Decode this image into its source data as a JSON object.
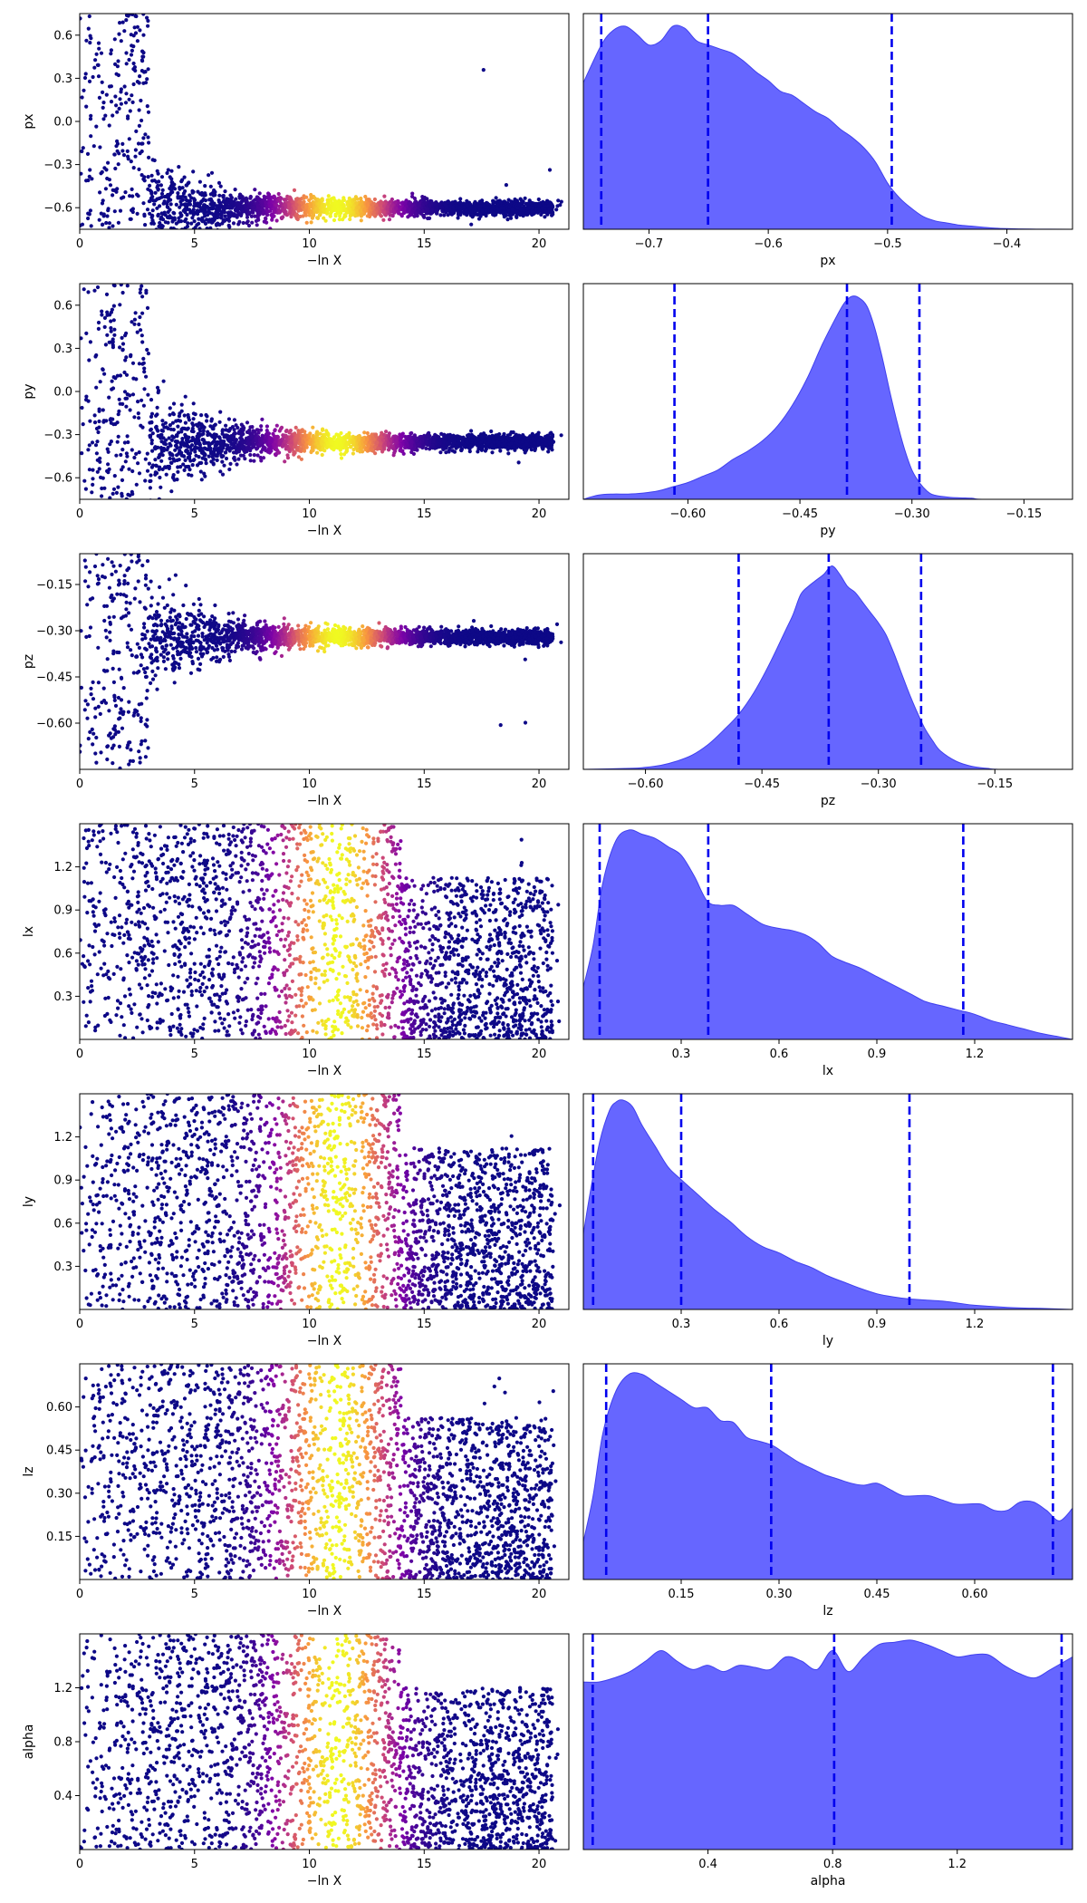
{
  "chart_data": [
    {
      "type": "scatter",
      "panel": "trace",
      "xlabel": "−ln X",
      "ylabel": "px",
      "xlim": [
        0,
        21.3
      ],
      "ylim": [
        -0.75,
        0.75
      ],
      "xticks": [
        0,
        5,
        10,
        15,
        20
      ],
      "yticks": [
        -0.6,
        -0.3,
        0.0,
        0.3,
        0.6
      ],
      "ytick_labels": [
        "−0.6",
        "−0.3",
        "0.0",
        "0.3",
        "0.6"
      ],
      "shape": "funnel",
      "converge_y": -0.6,
      "grid": false
    },
    {
      "type": "area",
      "panel": "posterior",
      "xlabel": "px",
      "xlim": [
        -0.755,
        -0.345
      ],
      "xticks": [
        -0.7,
        -0.6,
        -0.5,
        -0.4
      ],
      "xtick_labels": [
        "−0.7",
        "−0.6",
        "−0.5",
        "−0.4"
      ],
      "x": [
        -0.755,
        -0.74,
        -0.73,
        -0.72,
        -0.71,
        -0.7,
        -0.69,
        -0.68,
        -0.67,
        -0.66,
        -0.65,
        -0.64,
        -0.63,
        -0.62,
        -0.61,
        -0.6,
        -0.59,
        -0.58,
        -0.57,
        -0.56,
        -0.55,
        -0.54,
        -0.53,
        -0.52,
        -0.51,
        -0.5,
        -0.49,
        -0.48,
        -0.47,
        -0.46,
        -0.45,
        -0.44,
        -0.43,
        -0.42,
        -0.41,
        -0.4,
        -0.38,
        -0.345
      ],
      "y": [
        0.7,
        0.88,
        0.95,
        0.97,
        0.93,
        0.88,
        0.9,
        0.97,
        0.96,
        0.9,
        0.88,
        0.86,
        0.84,
        0.8,
        0.75,
        0.71,
        0.66,
        0.64,
        0.6,
        0.56,
        0.53,
        0.48,
        0.44,
        0.39,
        0.32,
        0.22,
        0.15,
        0.1,
        0.06,
        0.04,
        0.03,
        0.02,
        0.015,
        0.01,
        0.005,
        0.003,
        0.001,
        0.0
      ],
      "ylim": [
        0,
        1.03
      ],
      "quantile_lines": [
        -0.74,
        -0.6505,
        -0.4965
      ],
      "color": "#6666ff"
    },
    {
      "type": "scatter",
      "panel": "trace",
      "xlabel": "−ln X",
      "ylabel": "py",
      "xlim": [
        0,
        21.3
      ],
      "ylim": [
        -0.75,
        0.75
      ],
      "xticks": [
        0,
        5,
        10,
        15,
        20
      ],
      "yticks": [
        -0.6,
        -0.3,
        0.0,
        0.3,
        0.6
      ],
      "ytick_labels": [
        "−0.6",
        "−0.3",
        "0.0",
        "0.3",
        "0.6"
      ],
      "shape": "funnel",
      "converge_y": -0.35,
      "grid": false
    },
    {
      "type": "area",
      "panel": "posterior",
      "xlabel": "py",
      "xlim": [
        -0.74,
        -0.085
      ],
      "xticks": [
        -0.6,
        -0.45,
        -0.3,
        -0.15
      ],
      "xtick_labels": [
        "−0.60",
        "−0.45",
        "−0.30",
        "−0.15"
      ],
      "x": [
        -0.74,
        -0.72,
        -0.7,
        -0.68,
        -0.66,
        -0.64,
        -0.62,
        -0.6,
        -0.58,
        -0.56,
        -0.54,
        -0.52,
        -0.5,
        -0.48,
        -0.46,
        -0.44,
        -0.42,
        -0.4,
        -0.39,
        -0.38,
        -0.37,
        -0.36,
        -0.35,
        -0.34,
        -0.33,
        -0.32,
        -0.31,
        -0.3,
        -0.29,
        -0.28,
        -0.27,
        -0.25,
        -0.22,
        -0.2,
        -0.085
      ],
      "y": [
        0.0,
        0.02,
        0.025,
        0.025,
        0.03,
        0.04,
        0.06,
        0.08,
        0.11,
        0.14,
        0.19,
        0.23,
        0.28,
        0.35,
        0.45,
        0.58,
        0.74,
        0.88,
        0.94,
        0.97,
        0.96,
        0.92,
        0.82,
        0.68,
        0.52,
        0.37,
        0.24,
        0.14,
        0.08,
        0.04,
        0.02,
        0.01,
        0.005,
        0.0,
        0.0
      ],
      "ylim": [
        0,
        1.03
      ],
      "quantile_lines": [
        -0.618,
        -0.387,
        -0.29
      ],
      "color": "#6666ff"
    },
    {
      "type": "scatter",
      "panel": "trace",
      "xlabel": "−ln X",
      "ylabel": "pz",
      "xlim": [
        0,
        21.3
      ],
      "ylim": [
        -0.75,
        -0.05
      ],
      "xticks": [
        0,
        5,
        10,
        15,
        20
      ],
      "yticks": [
        -0.6,
        -0.45,
        -0.3,
        -0.15
      ],
      "ytick_labels": [
        "−0.60",
        "−0.45",
        "−0.30",
        "−0.15"
      ],
      "shape": "funnel",
      "converge_y": -0.32,
      "grid": false
    },
    {
      "type": "area",
      "panel": "posterior",
      "xlabel": "pz",
      "xlim": [
        -0.68,
        -0.05
      ],
      "xticks": [
        -0.6,
        -0.45,
        -0.3,
        -0.15
      ],
      "xtick_labels": [
        "−0.60",
        "−0.45",
        "−0.30",
        "−0.15"
      ],
      "x": [
        -0.68,
        -0.62,
        -0.6,
        -0.58,
        -0.56,
        -0.54,
        -0.52,
        -0.5,
        -0.48,
        -0.46,
        -0.44,
        -0.42,
        -0.41,
        -0.4,
        -0.39,
        -0.38,
        -0.37,
        -0.36,
        -0.35,
        -0.34,
        -0.33,
        -0.32,
        -0.31,
        -0.3,
        -0.29,
        -0.28,
        -0.27,
        -0.26,
        -0.25,
        -0.24,
        -0.23,
        -0.22,
        -0.2,
        -0.18,
        -0.16,
        -0.14,
        -0.05
      ],
      "y": [
        0.0,
        0.005,
        0.01,
        0.02,
        0.04,
        0.07,
        0.12,
        0.19,
        0.27,
        0.38,
        0.52,
        0.68,
        0.76,
        0.86,
        0.9,
        0.93,
        0.96,
        1.0,
        0.96,
        0.9,
        0.87,
        0.82,
        0.77,
        0.72,
        0.66,
        0.57,
        0.47,
        0.37,
        0.28,
        0.2,
        0.14,
        0.09,
        0.04,
        0.015,
        0.005,
        0.0,
        0.0
      ],
      "ylim": [
        0,
        1.06
      ],
      "quantile_lines": [
        -0.48,
        -0.364,
        -0.245
      ],
      "color": "#6666ff"
    },
    {
      "type": "scatter",
      "panel": "trace",
      "xlabel": "−ln X",
      "ylabel": "lx",
      "xlim": [
        0,
        21.3
      ],
      "ylim": [
        0.0,
        1.5
      ],
      "xticks": [
        0,
        5,
        10,
        15,
        20
      ],
      "yticks": [
        0.3,
        0.6,
        0.9,
        1.2
      ],
      "ytick_labels": [
        "0.3",
        "0.6",
        "0.9",
        "1.2"
      ],
      "shape": "band",
      "grid": false
    },
    {
      "type": "area",
      "panel": "posterior",
      "xlabel": "lx",
      "xlim": [
        0.0,
        1.5
      ],
      "xticks": [
        0.3,
        0.6,
        0.9,
        1.2
      ],
      "xtick_labels": [
        "0.3",
        "0.6",
        "0.9",
        "1.2"
      ],
      "x": [
        0.0,
        0.03,
        0.06,
        0.1,
        0.14,
        0.18,
        0.22,
        0.26,
        0.3,
        0.34,
        0.38,
        0.42,
        0.46,
        0.5,
        0.55,
        0.6,
        0.64,
        0.68,
        0.72,
        0.76,
        0.8,
        0.85,
        0.9,
        0.95,
        1.0,
        1.05,
        1.1,
        1.15,
        1.2,
        1.25,
        1.3,
        1.35,
        1.4,
        1.45,
        1.5
      ],
      "y": [
        0.25,
        0.45,
        0.75,
        0.95,
        1.0,
        0.98,
        0.96,
        0.92,
        0.88,
        0.78,
        0.66,
        0.64,
        0.64,
        0.6,
        0.55,
        0.53,
        0.52,
        0.5,
        0.46,
        0.4,
        0.37,
        0.34,
        0.3,
        0.26,
        0.22,
        0.18,
        0.16,
        0.14,
        0.12,
        0.09,
        0.07,
        0.05,
        0.03,
        0.015,
        0.0
      ],
      "ylim": [
        0,
        1.03
      ],
      "quantile_lines": [
        0.05,
        0.383,
        1.165
      ],
      "color": "#6666ff"
    },
    {
      "type": "scatter",
      "panel": "trace",
      "xlabel": "−ln X",
      "ylabel": "ly",
      "xlim": [
        0,
        21.3
      ],
      "ylim": [
        0.0,
        1.5
      ],
      "xticks": [
        0,
        5,
        10,
        15,
        20
      ],
      "yticks": [
        0.3,
        0.6,
        0.9,
        1.2
      ],
      "ytick_labels": [
        "0.3",
        "0.6",
        "0.9",
        "1.2"
      ],
      "shape": "band",
      "grid": false
    },
    {
      "type": "area",
      "panel": "posterior",
      "xlabel": "ly",
      "xlim": [
        0.0,
        1.5
      ],
      "xticks": [
        0.3,
        0.6,
        0.9,
        1.2
      ],
      "xtick_labels": [
        "0.3",
        "0.6",
        "0.9",
        "1.2"
      ],
      "x": [
        0.0,
        0.02,
        0.05,
        0.08,
        0.1,
        0.12,
        0.15,
        0.18,
        0.22,
        0.26,
        0.3,
        0.35,
        0.4,
        0.45,
        0.5,
        0.55,
        0.6,
        0.65,
        0.7,
        0.75,
        0.8,
        0.85,
        0.9,
        0.95,
        1.0,
        1.05,
        1.1,
        1.15,
        1.2,
        1.3,
        1.4,
        1.5
      ],
      "y": [
        0.36,
        0.55,
        0.8,
        0.95,
        0.99,
        1.0,
        0.97,
        0.88,
        0.78,
        0.68,
        0.62,
        0.55,
        0.48,
        0.42,
        0.35,
        0.3,
        0.27,
        0.23,
        0.2,
        0.16,
        0.13,
        0.1,
        0.075,
        0.06,
        0.05,
        0.045,
        0.04,
        0.03,
        0.02,
        0.01,
        0.005,
        0.0
      ],
      "ylim": [
        0,
        1.03
      ],
      "quantile_lines": [
        0.03,
        0.3,
        1.0
      ],
      "color": "#6666ff"
    },
    {
      "type": "scatter",
      "panel": "trace",
      "xlabel": "−ln X",
      "ylabel": "lz",
      "xlim": [
        0,
        21.3
      ],
      "ylim": [
        0.0,
        0.75
      ],
      "xticks": [
        0,
        5,
        10,
        15,
        20
      ],
      "yticks": [
        0.15,
        0.3,
        0.45,
        0.6
      ],
      "ytick_labels": [
        "0.15",
        "0.30",
        "0.45",
        "0.60"
      ],
      "shape": "band",
      "grid": false
    },
    {
      "type": "area",
      "panel": "posterior",
      "xlabel": "lz",
      "xlim": [
        0.0,
        0.75
      ],
      "xticks": [
        0.15,
        0.3,
        0.45,
        0.6
      ],
      "xtick_labels": [
        "0.15",
        "0.30",
        "0.45",
        "0.60"
      ],
      "x": [
        0.0,
        0.015,
        0.03,
        0.05,
        0.07,
        0.09,
        0.11,
        0.13,
        0.15,
        0.17,
        0.19,
        0.21,
        0.23,
        0.25,
        0.27,
        0.29,
        0.31,
        0.33,
        0.35,
        0.37,
        0.39,
        0.41,
        0.43,
        0.45,
        0.47,
        0.49,
        0.51,
        0.53,
        0.55,
        0.57,
        0.59,
        0.61,
        0.63,
        0.65,
        0.67,
        0.69,
        0.71,
        0.73,
        0.75
      ],
      "y": [
        0.18,
        0.4,
        0.7,
        0.9,
        0.98,
        0.98,
        0.94,
        0.9,
        0.86,
        0.82,
        0.82,
        0.76,
        0.75,
        0.68,
        0.66,
        0.64,
        0.6,
        0.56,
        0.53,
        0.5,
        0.48,
        0.46,
        0.45,
        0.46,
        0.43,
        0.4,
        0.4,
        0.4,
        0.38,
        0.36,
        0.36,
        0.36,
        0.33,
        0.33,
        0.37,
        0.37,
        0.33,
        0.28,
        0.34
      ],
      "ylim": [
        0,
        1.03
      ],
      "quantile_lines": [
        0.035,
        0.288,
        0.72
      ],
      "color": "#6666ff"
    },
    {
      "type": "scatter",
      "panel": "trace",
      "xlabel": "−ln X",
      "ylabel": "alpha",
      "xlim": [
        0,
        21.3
      ],
      "ylim": [
        0.0,
        1.6
      ],
      "xticks": [
        0,
        5,
        10,
        15,
        20
      ],
      "yticks": [
        0.4,
        0.8,
        1.2
      ],
      "ytick_labels": [
        "0.4",
        "0.8",
        "1.2"
      ],
      "shape": "band",
      "grid": false
    },
    {
      "type": "area",
      "panel": "posterior",
      "xlabel": "alpha",
      "xlim": [
        0.0,
        1.57
      ],
      "xticks": [
        0.4,
        0.8,
        1.2
      ],
      "xtick_labels": [
        "0.4",
        "0.8",
        "1.2"
      ],
      "x": [
        0.0,
        0.05,
        0.1,
        0.15,
        0.2,
        0.25,
        0.3,
        0.35,
        0.4,
        0.45,
        0.5,
        0.55,
        0.6,
        0.65,
        0.7,
        0.75,
        0.8,
        0.85,
        0.9,
        0.95,
        1.0,
        1.05,
        1.1,
        1.15,
        1.2,
        1.25,
        1.3,
        1.35,
        1.4,
        1.45,
        1.5,
        1.57
      ],
      "y": [
        0.8,
        0.8,
        0.82,
        0.85,
        0.9,
        0.95,
        0.9,
        0.86,
        0.88,
        0.85,
        0.88,
        0.87,
        0.86,
        0.92,
        0.9,
        0.86,
        0.95,
        0.85,
        0.92,
        0.98,
        0.99,
        1.0,
        0.98,
        0.95,
        0.92,
        0.93,
        0.93,
        0.88,
        0.84,
        0.82,
        0.86,
        0.92
      ],
      "ylim": [
        0,
        1.03
      ],
      "quantile_lines": [
        0.03,
        0.805,
        1.535
      ],
      "color": "#6666ff"
    }
  ]
}
